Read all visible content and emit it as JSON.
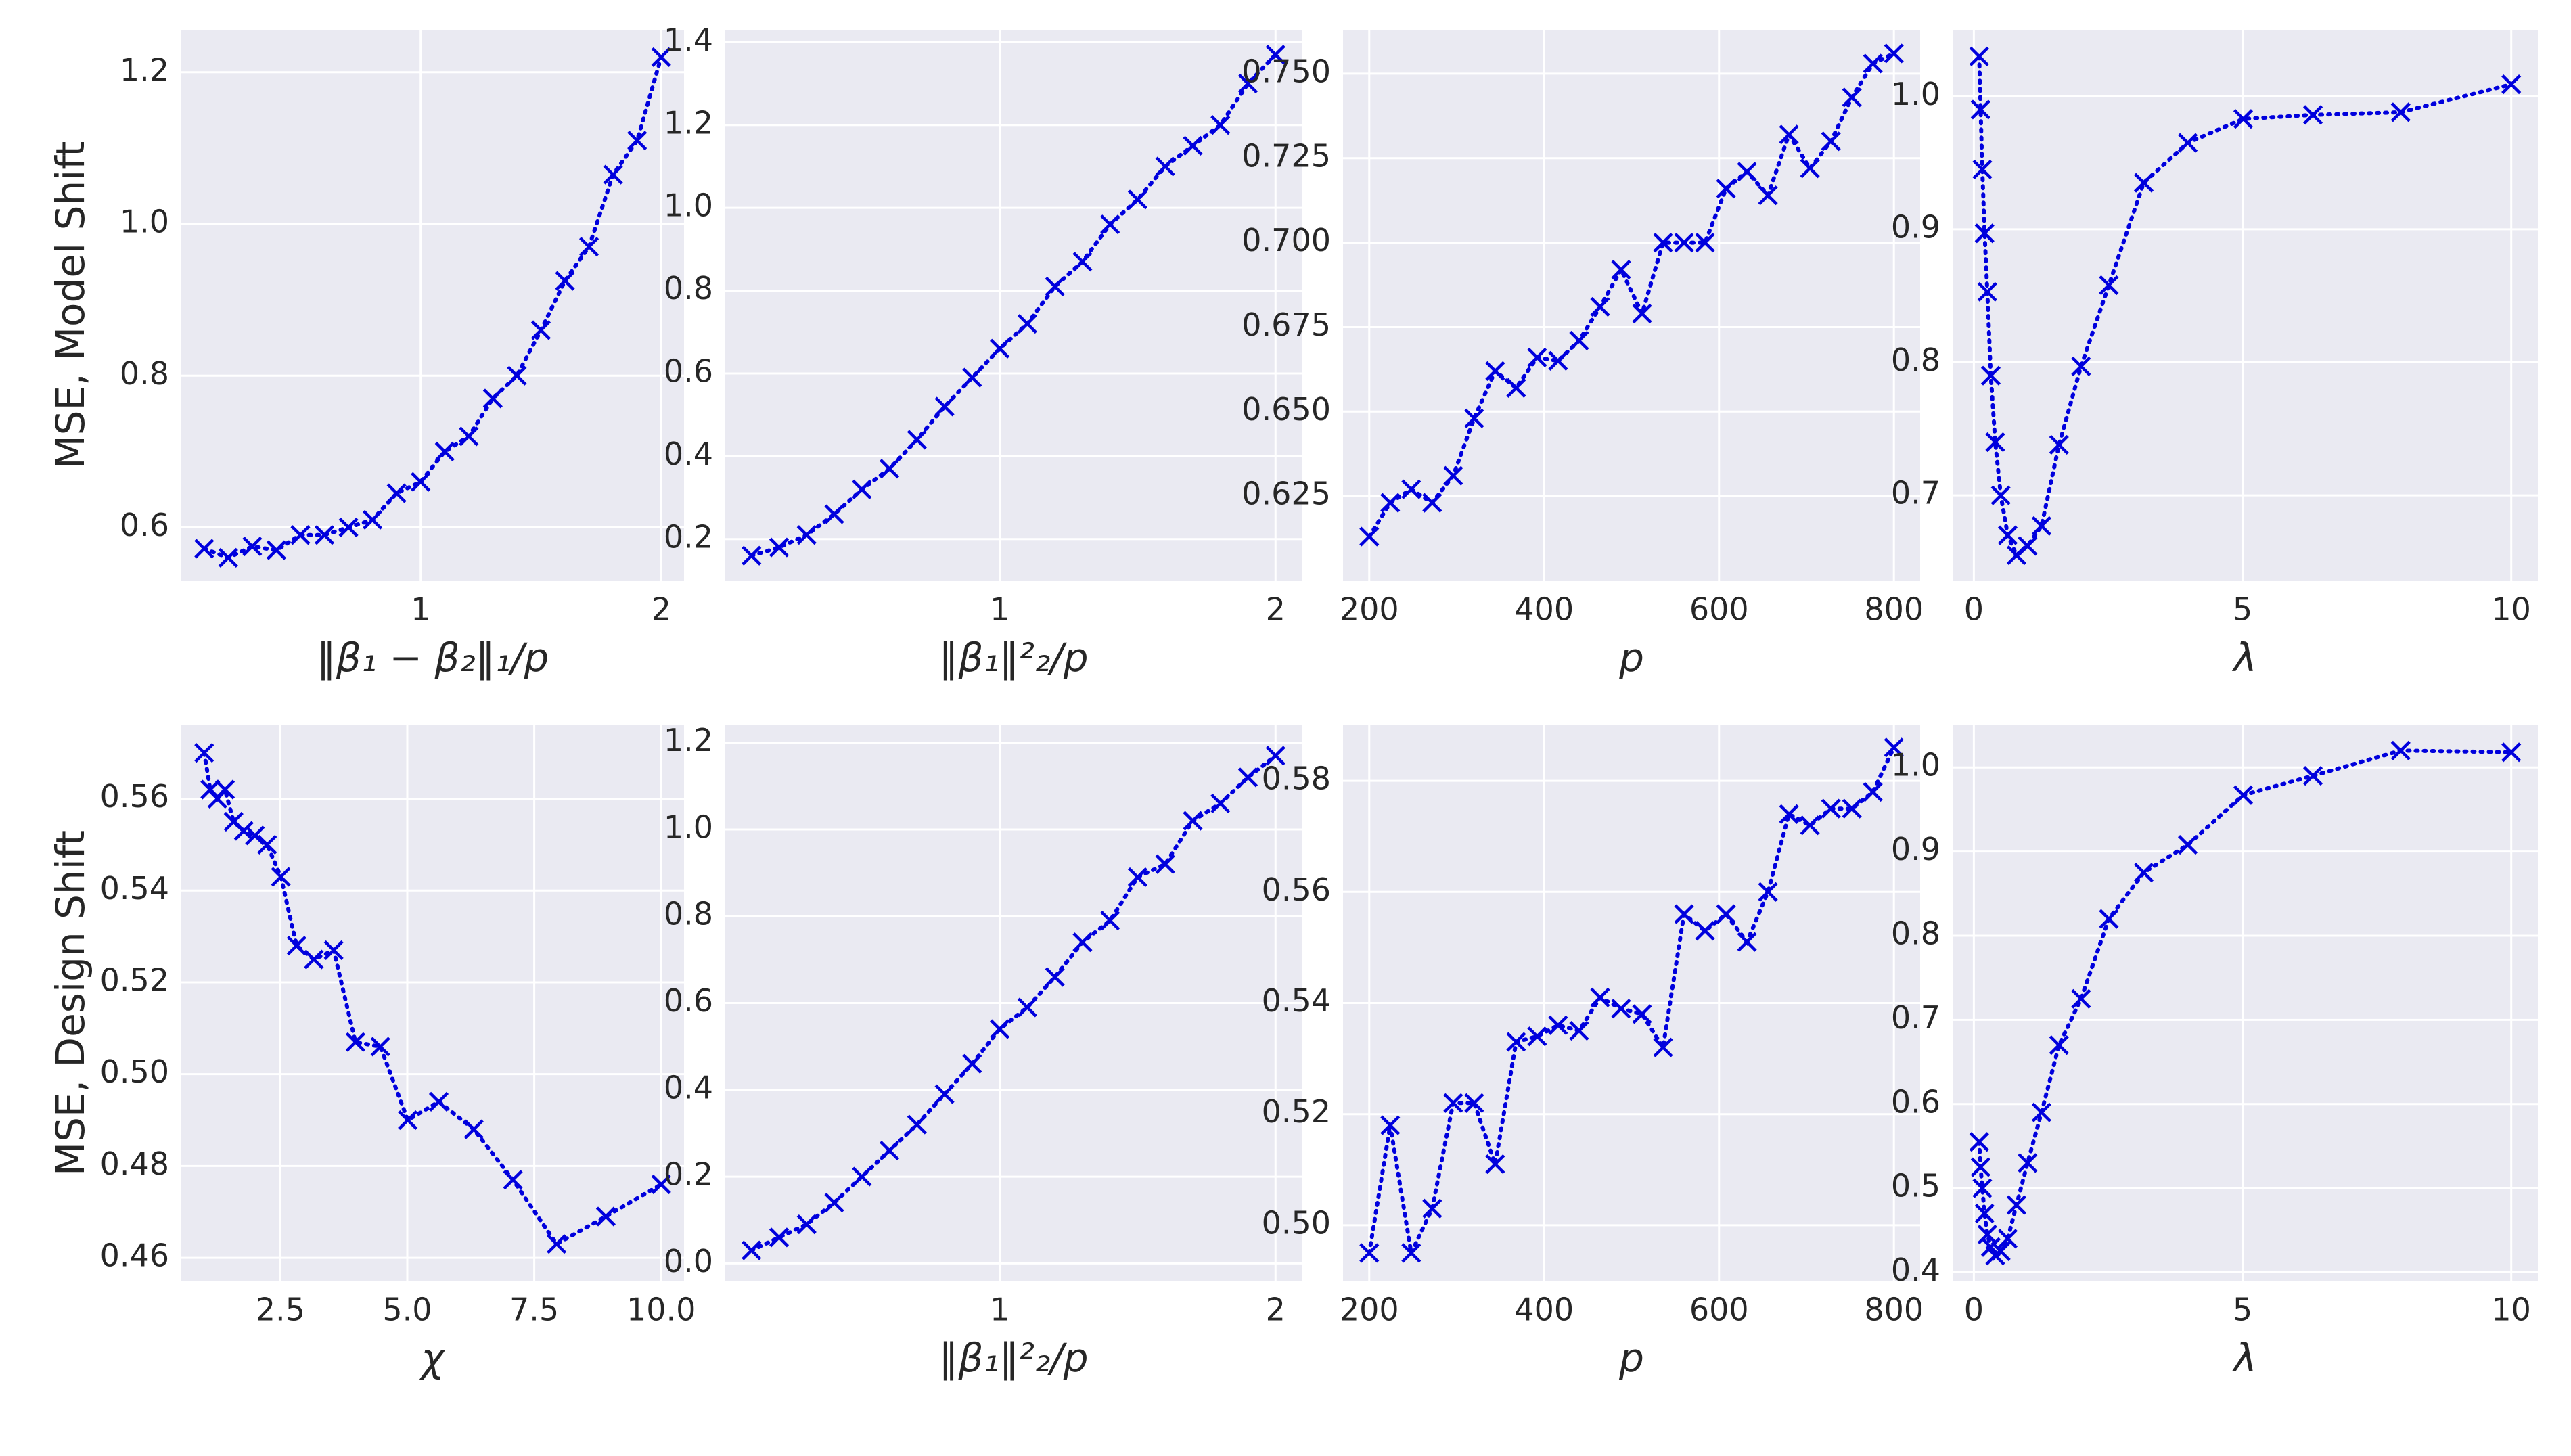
{
  "chart_data": [
    {
      "type": "line",
      "ylabel": "MSE, Model Shift",
      "xlabel": "‖β₁ − β₂‖₁/p",
      "color": "#0000dd",
      "grid": true,
      "x": [
        0.1,
        0.2,
        0.3,
        0.4,
        0.5,
        0.6,
        0.7,
        0.8,
        0.9,
        1.0,
        1.1,
        1.2,
        1.3,
        1.4,
        1.5,
        1.6,
        1.7,
        1.8,
        1.9,
        2.0
      ],
      "values": [
        0.572,
        0.56,
        0.575,
        0.57,
        0.59,
        0.59,
        0.6,
        0.61,
        0.645,
        0.66,
        0.7,
        0.72,
        0.77,
        0.8,
        0.86,
        0.925,
        0.97,
        1.065,
        1.11,
        1.22
      ],
      "xlim": [
        0.005,
        2.095
      ],
      "xticks": [
        1,
        2
      ],
      "ylim": [
        0.53,
        1.256
      ],
      "yticks": [
        0.6,
        0.8,
        {
          "value": 1,
          "label": "1.0"
        },
        1.2
      ]
    },
    {
      "type": "line",
      "xlabel": "‖β₁‖²₂/p",
      "color": "#0000dd",
      "grid": true,
      "x": [
        0.1,
        0.2,
        0.3,
        0.4,
        0.5,
        0.6,
        0.7,
        0.8,
        0.9,
        1.0,
        1.1,
        1.2,
        1.3,
        1.4,
        1.5,
        1.6,
        1.7,
        1.8,
        1.9,
        2.0
      ],
      "values": [
        0.16,
        0.18,
        0.21,
        0.26,
        0.32,
        0.37,
        0.44,
        0.52,
        0.59,
        0.66,
        0.72,
        0.81,
        0.87,
        0.96,
        1.02,
        1.1,
        1.15,
        1.2,
        1.3,
        1.37
      ],
      "xlim": [
        0.005,
        2.095
      ],
      "xticks": [
        1,
        2
      ],
      "ylim": [
        0.1,
        1.43
      ],
      "yticks": [
        0.2,
        0.4,
        0.6,
        0.8,
        {
          "value": 1,
          "label": "1.0"
        },
        1.2,
        1.4
      ]
    },
    {
      "type": "line",
      "xlabel": "p",
      "color": "#0000dd",
      "grid": true,
      "x": [
        200,
        224,
        248,
        272,
        296,
        320,
        344,
        368,
        392,
        416,
        440,
        464,
        488,
        512,
        536,
        560,
        584,
        608,
        632,
        656,
        680,
        704,
        728,
        752,
        776,
        800
      ],
      "values": [
        0.613,
        0.623,
        0.627,
        0.623,
        0.631,
        0.648,
        0.662,
        0.657,
        0.666,
        0.665,
        0.671,
        0.681,
        0.692,
        0.679,
        0.7,
        0.7,
        0.7,
        0.716,
        0.721,
        0.714,
        0.732,
        0.722,
        0.73,
        0.743,
        0.753,
        0.756
      ],
      "xlim": [
        170,
        830
      ],
      "xticks": [
        200,
        400,
        600,
        800
      ],
      "ylim": [
        0.6,
        0.763
      ],
      "yticks": [
        0.625,
        {
          "value": 0.65,
          "label": "0.650"
        },
        0.675,
        {
          "value": 0.7,
          "label": "0.700"
        },
        0.725,
        {
          "value": 0.75,
          "label": "0.750"
        }
      ]
    },
    {
      "type": "line",
      "xlabel": "λ",
      "color": "#0000dd",
      "grid": true,
      "x": [
        0.1,
        0.126,
        0.158,
        0.2,
        0.251,
        0.316,
        0.398,
        0.501,
        0.631,
        0.794,
        1,
        1.259,
        1.585,
        1.995,
        2.512,
        3.162,
        3.981,
        5.012,
        6.31,
        7.943,
        10
      ],
      "values": [
        1.03,
        0.99,
        0.945,
        0.897,
        0.853,
        0.79,
        0.74,
        0.7,
        0.67,
        0.655,
        0.662,
        0.677,
        0.738,
        0.797,
        0.858,
        0.935,
        0.965,
        0.983,
        0.986,
        0.988,
        1.009
      ],
      "xlim": [
        -0.395,
        10.495
      ],
      "xticks": [
        0,
        5,
        10
      ],
      "ylim": [
        0.636,
        1.05
      ],
      "yticks": [
        0.7,
        0.8,
        0.9,
        {
          "value": 1,
          "label": "1.0"
        }
      ]
    },
    {
      "type": "line",
      "ylabel": "MSE, Design Shift",
      "xlabel": "χ",
      "color": "#0000dd",
      "grid": true,
      "x": [
        1,
        1.12,
        1.26,
        1.41,
        1.58,
        1.78,
        2,
        2.24,
        2.51,
        2.82,
        3.16,
        3.55,
        3.98,
        4.47,
        5.01,
        5.62,
        6.31,
        7.08,
        7.94,
        8.91,
        10
      ],
      "values": [
        0.57,
        0.562,
        0.56,
        0.562,
        0.555,
        0.553,
        0.552,
        0.55,
        0.543,
        0.528,
        0.525,
        0.527,
        0.507,
        0.506,
        0.49,
        0.494,
        0.488,
        0.477,
        0.463,
        0.469,
        0.476
      ],
      "xlim": [
        0.55,
        10.45
      ],
      "xticks": [
        2.5,
        {
          "value": 5,
          "label": "5.0"
        },
        7.5,
        {
          "value": 10,
          "label": "10.0"
        }
      ],
      "ylim": [
        0.455,
        0.576
      ],
      "yticks": [
        0.46,
        0.48,
        {
          "value": 0.5,
          "label": "0.50"
        },
        0.52,
        0.54,
        0.56
      ]
    },
    {
      "type": "line",
      "xlabel": "‖β₁‖²₂/p",
      "color": "#0000dd",
      "grid": true,
      "x": [
        0.1,
        0.2,
        0.3,
        0.4,
        0.5,
        0.6,
        0.7,
        0.8,
        0.9,
        1.0,
        1.1,
        1.2,
        1.3,
        1.4,
        1.5,
        1.6,
        1.7,
        1.8,
        1.9,
        2.0
      ],
      "values": [
        0.03,
        0.06,
        0.09,
        0.14,
        0.2,
        0.26,
        0.32,
        0.39,
        0.46,
        0.54,
        0.59,
        0.66,
        0.74,
        0.79,
        0.89,
        0.92,
        1.02,
        1.06,
        1.12,
        1.17
      ],
      "xlim": [
        0.005,
        2.095
      ],
      "xticks": [
        1,
        2
      ],
      "ylim": [
        -0.04,
        1.24
      ],
      "yticks": [
        {
          "value": 0,
          "label": "0.0"
        },
        0.2,
        0.4,
        0.6,
        0.8,
        {
          "value": 1,
          "label": "1.0"
        },
        1.2
      ]
    },
    {
      "type": "line",
      "xlabel": "p",
      "color": "#0000dd",
      "grid": true,
      "x": [
        200,
        224,
        248,
        272,
        296,
        320,
        344,
        368,
        392,
        416,
        440,
        464,
        488,
        512,
        536,
        560,
        584,
        608,
        632,
        656,
        680,
        704,
        728,
        752,
        776,
        800
      ],
      "values": [
        0.495,
        0.518,
        0.495,
        0.503,
        0.522,
        0.522,
        0.511,
        0.533,
        0.534,
        0.536,
        0.535,
        0.541,
        0.539,
        0.538,
        0.532,
        0.556,
        0.553,
        0.556,
        0.551,
        0.56,
        0.574,
        0.572,
        0.575,
        0.575,
        0.578,
        0.586
      ],
      "xlim": [
        170,
        830
      ],
      "xticks": [
        200,
        400,
        600,
        800
      ],
      "ylim": [
        0.49,
        0.59
      ],
      "yticks": [
        {
          "value": 0.5,
          "label": "0.50"
        },
        0.52,
        0.54,
        0.56,
        0.58
      ]
    },
    {
      "type": "line",
      "xlabel": "λ",
      "color": "#0000dd",
      "grid": true,
      "x": [
        0.1,
        0.126,
        0.158,
        0.2,
        0.251,
        0.316,
        0.398,
        0.501,
        0.631,
        0.794,
        1,
        1.259,
        1.585,
        1.995,
        2.512,
        3.162,
        3.981,
        5.012,
        6.31,
        7.943,
        10
      ],
      "values": [
        0.555,
        0.525,
        0.5,
        0.47,
        0.445,
        0.43,
        0.42,
        0.425,
        0.44,
        0.48,
        0.53,
        0.59,
        0.67,
        0.725,
        0.82,
        0.875,
        0.908,
        0.967,
        0.99,
        1.02,
        1.018
      ],
      "xlim": [
        -0.395,
        10.495
      ],
      "xticks": [
        0,
        5,
        10
      ],
      "ylim": [
        0.39,
        1.05
      ],
      "yticks": [
        0.4,
        0.5,
        0.6,
        0.7,
        0.8,
        0.9,
        {
          "value": 1,
          "label": "1.0"
        }
      ]
    }
  ]
}
